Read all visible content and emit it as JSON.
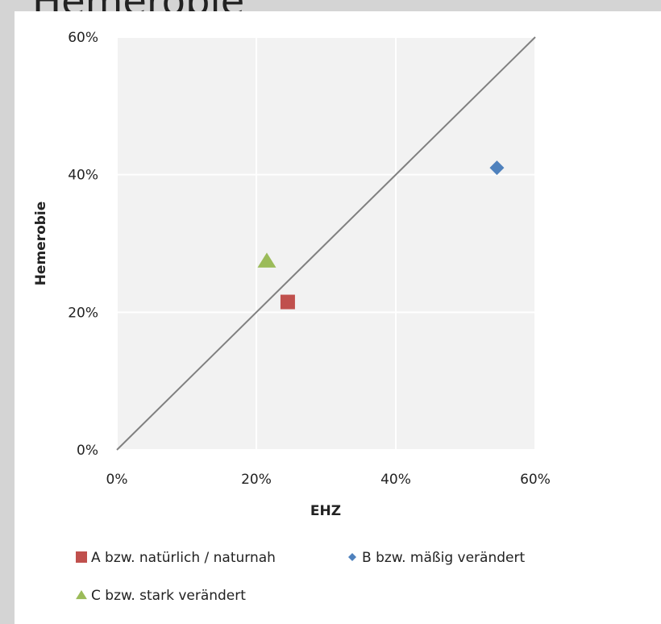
{
  "page": {
    "title_fragment": "Hemerobie"
  },
  "chart_data": {
    "type": "scatter",
    "title": "",
    "xlabel": "EHZ",
    "ylabel": "Hemerobie",
    "xlim": [
      0,
      60
    ],
    "ylim": [
      0,
      60
    ],
    "x_ticks": [
      "0%",
      "20%",
      "40%",
      "60%"
    ],
    "y_ticks": [
      "0%",
      "20%",
      "40%",
      "60%"
    ],
    "grid": true,
    "reference_line": {
      "from": [
        0,
        0
      ],
      "to": [
        60,
        60
      ],
      "color": "#808080"
    },
    "legend_position": "bottom",
    "series": [
      {
        "name": "A bzw. natürlich / naturnah",
        "marker": "square",
        "color": "#c0504d",
        "points": [
          [
            24.5,
            21.5
          ]
        ]
      },
      {
        "name": "B bzw. mäßig verändert",
        "marker": "diamond",
        "color": "#4f81bd",
        "points": [
          [
            54.5,
            41.0
          ]
        ]
      },
      {
        "name": "C bzw. stark verändert",
        "marker": "triangle",
        "color": "#9bbb59",
        "points": [
          [
            21.5,
            27.5
          ]
        ]
      }
    ]
  }
}
